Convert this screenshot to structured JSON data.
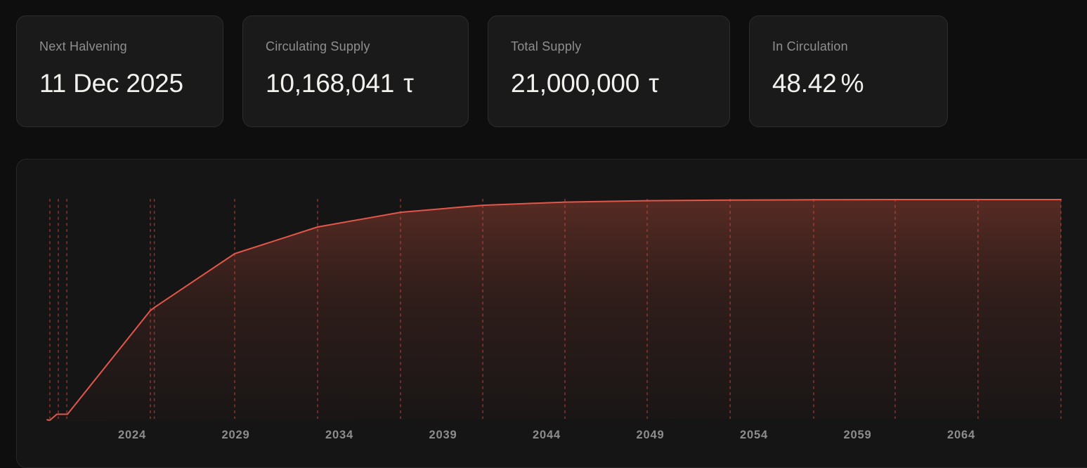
{
  "stats": [
    {
      "label": "Next Halvening",
      "value": "11 Dec 2025",
      "unit": ""
    },
    {
      "label": "Circulating Supply",
      "value": "10,168,041",
      "unit": "τ"
    },
    {
      "label": "Total Supply",
      "value": "21,000,000",
      "unit": "τ"
    },
    {
      "label": "In Circulation",
      "value": "48.42",
      "unit": "%"
    }
  ],
  "chart_data": {
    "type": "area",
    "title": "",
    "xlabel": "",
    "ylabel": "",
    "x_tick_labels": [
      "2024",
      "2029",
      "2034",
      "2039",
      "2044",
      "2049",
      "2054",
      "2059",
      "2064"
    ],
    "x_ticks": [
      2024,
      2029,
      2034,
      2039,
      2044,
      2049,
      2054,
      2059,
      2064
    ],
    "ylim": [
      0,
      21000000
    ],
    "max_supply": 21000000,
    "grid": "vertical-dashed-halvening-lines",
    "legend": "none",
    "halvening_line_years": [
      2020.03,
      2020.44,
      2020.85,
      2024.88,
      2025.07,
      2028.95,
      2032.95,
      2036.95,
      2040.92,
      2044.88,
      2048.85,
      2052.85,
      2056.88,
      2060.81,
      2064.81,
      2068.81
    ],
    "series": [
      {
        "name": "circulating-supply",
        "points": [
          [
            2019.9,
            40000
          ],
          [
            2020.03,
            0
          ],
          [
            2020.37,
            570000
          ],
          [
            2020.88,
            570000
          ],
          [
            2024.88,
            10440000
          ],
          [
            2025.08,
            10740000
          ],
          [
            2028.95,
            15850000
          ],
          [
            2032.95,
            18390000
          ],
          [
            2036.95,
            19790000
          ],
          [
            2040.92,
            20460000
          ],
          [
            2044.88,
            20760000
          ],
          [
            2048.85,
            20890000
          ],
          [
            2052.85,
            20950000
          ],
          [
            2056.88,
            20980000
          ],
          [
            2060.81,
            21000000
          ],
          [
            2064.81,
            21000000
          ],
          [
            2068.81,
            21000000
          ]
        ]
      }
    ],
    "colors": {
      "line": "#e2574a",
      "gridline": "#b03a30",
      "tick_label": "#8d8d8d",
      "fill_gradient": [
        {
          "offset": "0%",
          "color": "#d85640",
          "opacity": 0.34
        },
        {
          "offset": "45%",
          "color": "#b84836",
          "opacity": 0.16
        },
        {
          "offset": "100%",
          "color": "#a03c30",
          "opacity": 0.03
        }
      ]
    }
  }
}
